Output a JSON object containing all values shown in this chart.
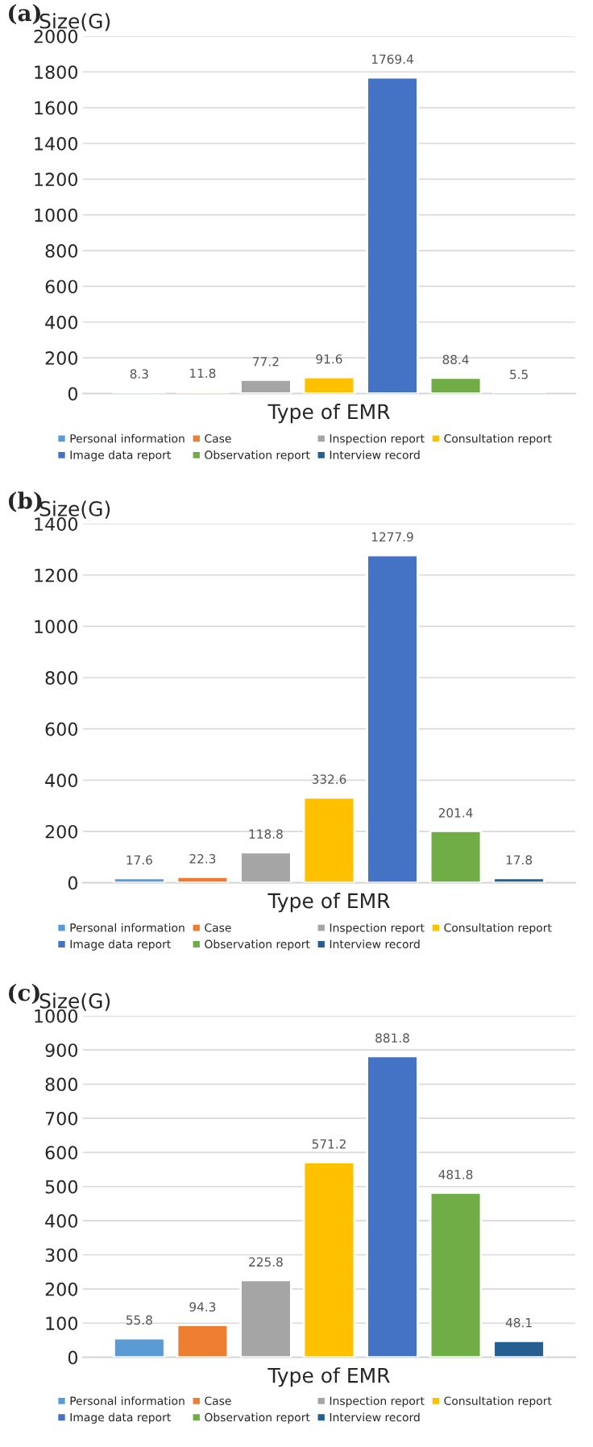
{
  "chart_data": [
    {
      "type": "bar",
      "title": "(a)",
      "ylabel": "Size(G)",
      "xlabel": "Type of EMR",
      "categories": [
        null
      ],
      "series": [
        {
          "name": "Personal information",
          "color": "#5b9bd5",
          "values": [
            8.3
          ]
        },
        {
          "name": "Case",
          "color": "#ed7d31",
          "values": [
            11.8
          ]
        },
        {
          "name": "Inspection report",
          "color": "#a5a5a5",
          "values": [
            77.2
          ]
        },
        {
          "name": "Consultation report",
          "color": "#ffc000",
          "values": [
            91.6
          ]
        },
        {
          "name": "Image data report",
          "color": "#4472c4",
          "values": [
            1769.4
          ]
        },
        {
          "name": "Observation report",
          "color": "#70ad47",
          "values": [
            88.4
          ]
        },
        {
          "name": "Interview record",
          "color": "#255e91",
          "values": [
            5.5
          ]
        }
      ],
      "ylim": [
        0,
        2000
      ],
      "yticks": [
        0,
        200,
        400,
        600,
        800,
        1000,
        1200,
        1400,
        1600,
        1800,
        2000
      ],
      "data_labels": true,
      "grid": "y",
      "legend": "bottom"
    },
    {
      "type": "bar",
      "title": "(b)",
      "ylabel": "Size(G)",
      "xlabel": "Type of EMR",
      "categories": [
        null
      ],
      "series": [
        {
          "name": "Personal information",
          "color": "#5b9bd5",
          "values": [
            17.6
          ]
        },
        {
          "name": "Case",
          "color": "#ed7d31",
          "values": [
            22.3
          ]
        },
        {
          "name": "Inspection report",
          "color": "#a5a5a5",
          "values": [
            118.8
          ]
        },
        {
          "name": "Consultation report",
          "color": "#ffc000",
          "values": [
            332.6
          ]
        },
        {
          "name": "Image data report",
          "color": "#4472c4",
          "values": [
            1277.9
          ]
        },
        {
          "name": "Observation report",
          "color": "#70ad47",
          "values": [
            201.4
          ]
        },
        {
          "name": "Interview record",
          "color": "#255e91",
          "values": [
            17.8
          ]
        }
      ],
      "ylim": [
        0,
        1400
      ],
      "yticks": [
        0,
        200,
        400,
        600,
        800,
        1000,
        1200,
        1400
      ],
      "data_labels": true,
      "grid": "y",
      "legend": "bottom"
    },
    {
      "type": "bar",
      "title": "(c)",
      "ylabel": "Size(G)",
      "xlabel": "Type of EMR",
      "categories": [
        null
      ],
      "series": [
        {
          "name": "Personal information",
          "color": "#5b9bd5",
          "values": [
            55.8
          ]
        },
        {
          "name": "Case",
          "color": "#ed7d31",
          "values": [
            94.3
          ]
        },
        {
          "name": "Inspection report",
          "color": "#a5a5a5",
          "values": [
            225.8
          ]
        },
        {
          "name": "Consultation report",
          "color": "#ffc000",
          "values": [
            571.2
          ]
        },
        {
          "name": "Image data report",
          "color": "#4472c4",
          "values": [
            881.8
          ]
        },
        {
          "name": "Observation report",
          "color": "#70ad47",
          "values": [
            481.8
          ]
        },
        {
          "name": "Interview record",
          "color": "#255e91",
          "values": [
            48.1
          ]
        }
      ],
      "ylim": [
        0,
        1000
      ],
      "yticks": [
        0,
        100,
        200,
        300,
        400,
        500,
        600,
        700,
        800,
        900,
        1000
      ],
      "data_labels": true,
      "grid": "y",
      "legend": "bottom"
    }
  ]
}
